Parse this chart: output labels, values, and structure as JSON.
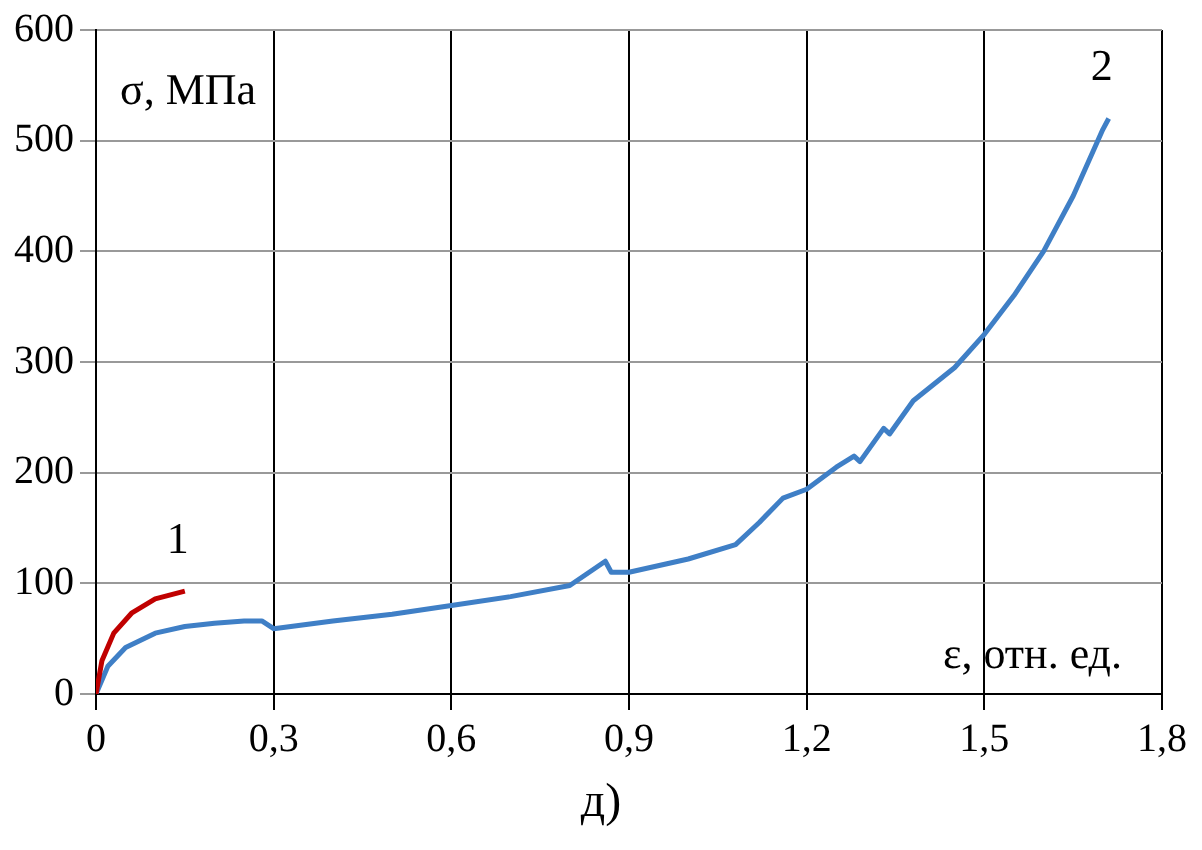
{
  "chart_data": {
    "type": "line",
    "xlabel": "ε, отн. ед.",
    "ylabel": "σ, МПа",
    "annotations": [
      "д)"
    ],
    "xlim": [
      0,
      1.8
    ],
    "xticks": [
      0,
      {
        "value": 0.3,
        "label": "0,3"
      },
      {
        "value": 0.6,
        "label": "0,6"
      },
      {
        "value": 0.9,
        "label": "0,9"
      },
      {
        "value": 1.2,
        "label": "1,2"
      },
      {
        "value": 1.5,
        "label": "1,5"
      },
      {
        "value": 1.8,
        "label": "1,8"
      }
    ],
    "ylim": [
      0,
      600
    ],
    "yticks": [
      0,
      100,
      200,
      300,
      400,
      500,
      600
    ],
    "grid": true,
    "legend": false,
    "marker": "none",
    "line_style": "solid",
    "series": [
      {
        "name": "1",
        "color": "#c00000",
        "x": [
          0,
          0.01,
          0.03,
          0.06,
          0.1,
          0.15
        ],
        "values": [
          0,
          30,
          55,
          73,
          86,
          93
        ]
      },
      {
        "name": "2",
        "color": "#3f7fc6",
        "x": [
          0,
          0.02,
          0.05,
          0.1,
          0.15,
          0.2,
          0.25,
          0.28,
          0.3,
          0.4,
          0.5,
          0.6,
          0.7,
          0.8,
          0.86,
          0.87,
          0.9,
          1.0,
          1.08,
          1.12,
          1.16,
          1.2,
          1.25,
          1.28,
          1.29,
          1.33,
          1.34,
          1.38,
          1.45,
          1.5,
          1.55,
          1.6,
          1.65,
          1.7,
          1.71
        ],
        "values": [
          0,
          25,
          42,
          55,
          61,
          64,
          66,
          66,
          59,
          66,
          72,
          80,
          88,
          98,
          120,
          110,
          110,
          122,
          135,
          155,
          177,
          185,
          205,
          215,
          210,
          240,
          235,
          265,
          295,
          325,
          360,
          400,
          450,
          510,
          520
        ]
      }
    ]
  }
}
